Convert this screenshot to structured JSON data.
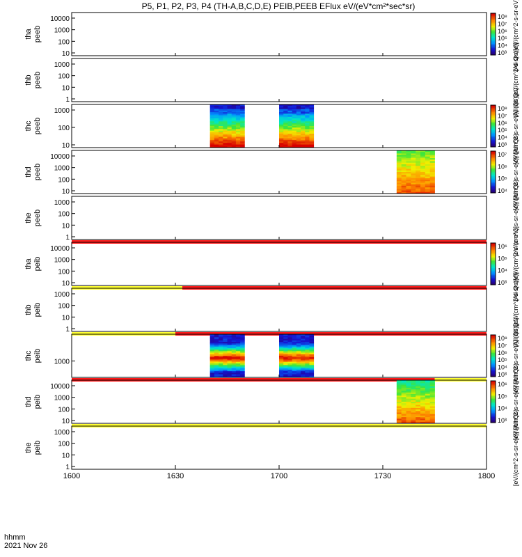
{
  "title": "P5, P1, P2, P3, P4 (TH-A,B,C,D,E) PEIB,PEEB EFlux eV/(eV*cm²*sec*sr)",
  "colors": {
    "line": "#000000",
    "red_bar": "#ff1a1a",
    "yellow_bar": "#ffff33",
    "background": "#ffffff"
  },
  "chart_data": {
    "type": "heatmap",
    "x_axis": {
      "label_line1": "hhmm",
      "label_line2": "2021 Nov 26",
      "range": [
        "16:00",
        "18:00"
      ],
      "ticks": [
        "1600",
        "1630",
        "1700",
        "1730",
        "1800"
      ]
    },
    "panels": [
      {
        "probe": "tha",
        "species": "peeb",
        "ylabel_top": "tha",
        "ylabel_bottom": "peeb",
        "yticks": [
          "10000",
          "1000",
          "100",
          "10"
        ],
        "colorbar": true,
        "colorbar_ticks": [
          "10⁸",
          "10⁷",
          "10⁶",
          "10⁵",
          "10⁴",
          "10³"
        ],
        "colorbar_label": "(All Qs)[eV/(cm^2-s-sr-eV)]",
        "data_blocks": [],
        "status_bar": []
      },
      {
        "probe": "thb",
        "species": "peeb",
        "ylabel_top": "thb",
        "ylabel_bottom": "peeb",
        "yticks": [
          "1000",
          "100",
          "10",
          "1"
        ],
        "colorbar": false,
        "colorbar_label": "(All Qs)[eV/(cm^2-s-sr-eV)]",
        "data_blocks": [],
        "status_bar": []
      },
      {
        "probe": "thc",
        "species": "peeb",
        "ylabel_top": "thc",
        "ylabel_bottom": "peeb",
        "yticks": [
          "1000",
          "100",
          "10"
        ],
        "colorbar": true,
        "colorbar_ticks": [
          "10⁸",
          "10⁷",
          "10⁶",
          "10⁵",
          "10⁴",
          "10³"
        ],
        "colorbar_label": "[eV/(cm^2-s-sr-eV)] (All Qs)",
        "data_blocks": [
          {
            "start": "16:40",
            "end": "16:50",
            "profile": "electron_cool"
          },
          {
            "start": "17:00",
            "end": "17:10",
            "profile": "electron_cool"
          }
        ],
        "status_bar": []
      },
      {
        "probe": "thd",
        "species": "peeb",
        "ylabel_top": "thd",
        "ylabel_bottom": "peeb",
        "yticks": [
          "10000",
          "1000",
          "100",
          "10"
        ],
        "colorbar": true,
        "colorbar_ticks": [
          "10⁷",
          "10⁶",
          "10⁵",
          "10⁴"
        ],
        "colorbar_label": "[eV/(cm^2-s-sr-eV)] (All Qs)",
        "data_blocks": [
          {
            "start": "17:34",
            "end": "17:45",
            "profile": "electron_warm"
          }
        ],
        "status_bar": []
      },
      {
        "probe": "the",
        "species": "peeb",
        "ylabel_top": "the",
        "ylabel_bottom": "peeb",
        "yticks": [
          "1000",
          "100",
          "10",
          "1"
        ],
        "colorbar": false,
        "colorbar_label": "[eV/(cm^2-s-sr-eV)] (All Qs)",
        "data_blocks": [],
        "status_bar": [
          {
            "start": "16:00",
            "end": "18:00",
            "color": "red"
          }
        ]
      },
      {
        "probe": "tha",
        "species": "peib",
        "ylabel_top": "tha",
        "ylabel_bottom": "peib",
        "yticks": [
          "10000",
          "1000",
          "100",
          "10"
        ],
        "colorbar": true,
        "colorbar_ticks": [
          "10⁶",
          "10⁵",
          "10⁴",
          "10³"
        ],
        "colorbar_label": "(All Qs)[eV/(cm^2-s-sr-eV)]",
        "data_blocks": [],
        "status_bar": [
          {
            "start": "16:00",
            "end": "16:32",
            "color": "yellow"
          },
          {
            "start": "16:32",
            "end": "18:00",
            "color": "red"
          }
        ]
      },
      {
        "probe": "thb",
        "species": "peib",
        "ylabel_top": "thb",
        "ylabel_bottom": "peib",
        "yticks": [
          "1000",
          "100",
          "10",
          "1"
        ],
        "colorbar": false,
        "colorbar_label": "(All Qs)[eV/(cm^2-s-sr-eV)]",
        "data_blocks": [],
        "status_bar": [
          {
            "start": "16:00",
            "end": "16:30",
            "color": "yellow"
          },
          {
            "start": "16:30",
            "end": "18:00",
            "color": "red"
          }
        ]
      },
      {
        "probe": "thc",
        "species": "peib",
        "ylabel_top": "thc",
        "ylabel_bottom": "peib",
        "yticks": [
          "1000"
        ],
        "colorbar": true,
        "colorbar_ticks": [
          "10⁸",
          "10⁷",
          "10⁶",
          "10⁵",
          "10⁴",
          "10³"
        ],
        "colorbar_label": "[eV/(cm^2-s-sr-eV)] (All Qs)",
        "data_blocks": [
          {
            "start": "16:40",
            "end": "16:50",
            "profile": "ion_band"
          },
          {
            "start": "17:00",
            "end": "17:10",
            "profile": "ion_band"
          }
        ],
        "status_bar": [
          {
            "start": "16:00",
            "end": "17:45",
            "color": "red"
          },
          {
            "start": "17:45",
            "end": "18:00",
            "color": "yellow"
          }
        ]
      },
      {
        "probe": "thd",
        "species": "peib",
        "ylabel_top": "thd",
        "ylabel_bottom": "peib",
        "yticks": [
          "10000",
          "1000",
          "100",
          "10"
        ],
        "colorbar": true,
        "colorbar_ticks": [
          "10⁶",
          "10⁵",
          "10⁴",
          "10³"
        ],
        "colorbar_label": "[eV/(cm^2-s-sr-eV)] (All Qs)",
        "data_blocks": [
          {
            "start": "17:34",
            "end": "17:45",
            "profile": "ion_warm"
          }
        ],
        "status_bar": [
          {
            "start": "16:00",
            "end": "18:00",
            "color": "yellow"
          }
        ]
      },
      {
        "probe": "the",
        "species": "peib",
        "ylabel_top": "the",
        "ylabel_bottom": "peib",
        "yticks": [
          "1000",
          "100",
          "10",
          "1"
        ],
        "colorbar": false,
        "colorbar_label": "[eV/(cm^2-s-sr-eV)] (All Qs)",
        "data_blocks": [],
        "status_bar": []
      }
    ]
  }
}
